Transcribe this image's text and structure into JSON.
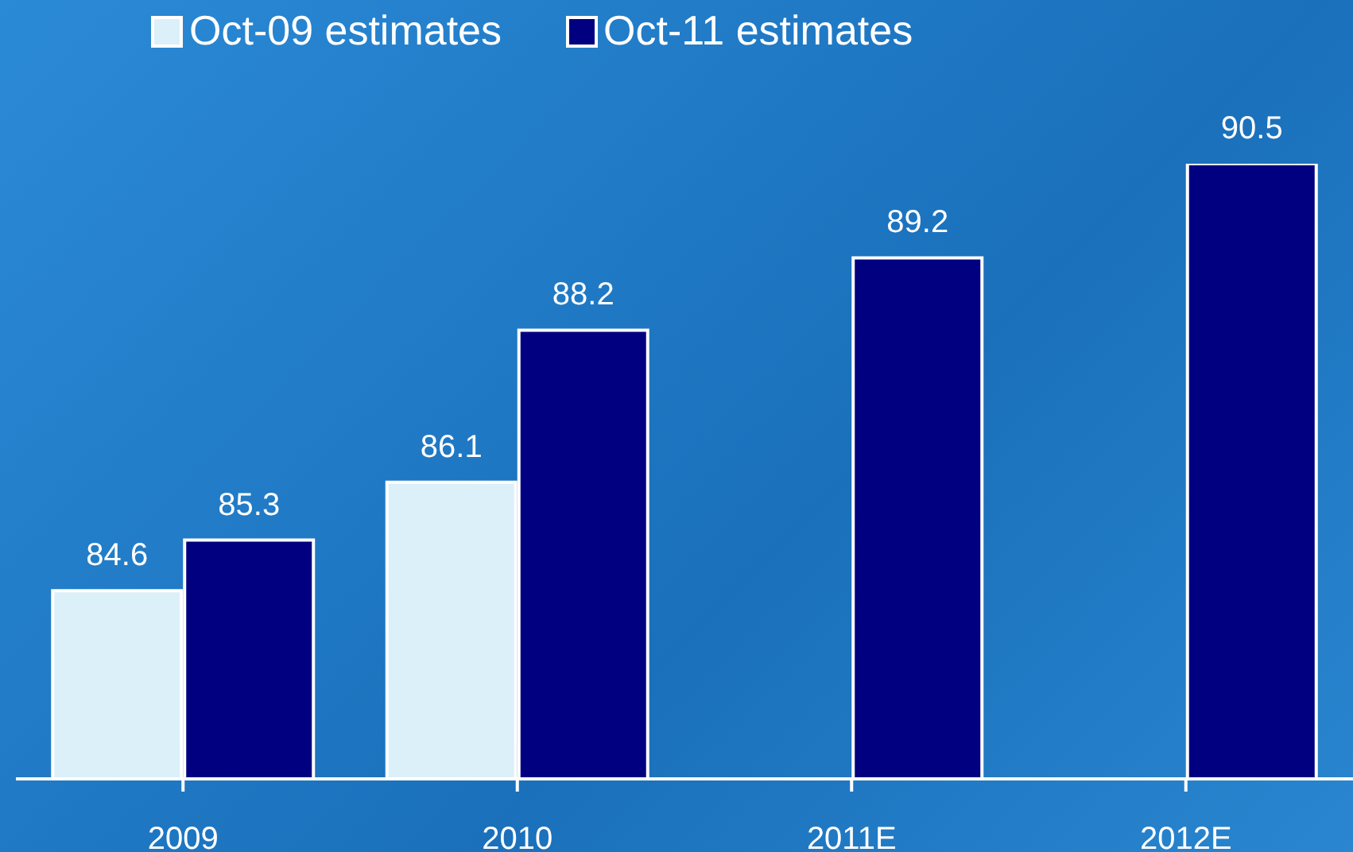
{
  "chart_data": {
    "type": "bar",
    "categories": [
      "2009",
      "2010",
      "2011E",
      "2012E"
    ],
    "series": [
      {
        "name": "Oct-09 estimates",
        "color": "#dcf0fa",
        "values": [
          84.6,
          86.1,
          null,
          null
        ]
      },
      {
        "name": "Oct-11 estimates",
        "color": "#000080",
        "values": [
          85.3,
          88.2,
          89.2,
          90.5
        ]
      }
    ],
    "ylim": [
      82,
      90.5
    ],
    "tick_labels": "x",
    "data_labels": true,
    "legend": "top",
    "grid": false
  }
}
